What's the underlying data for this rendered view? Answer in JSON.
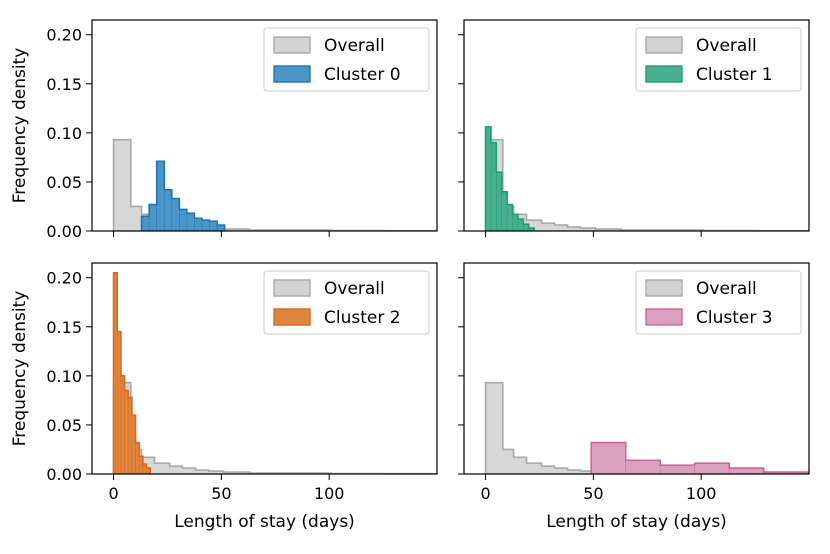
{
  "chart_data": {
    "type": "histogram",
    "xlabel": "Length of stay (days)",
    "ylabel": "Frequency density",
    "xlim": [
      -10,
      150
    ],
    "ylim": [
      0,
      0.215
    ],
    "xticks": [
      0,
      50,
      100
    ],
    "yticks": [
      0.0,
      0.05,
      0.1,
      0.15,
      0.2
    ],
    "ytick_labels": [
      "0.00",
      "0.05",
      "0.10",
      "0.15",
      "0.20"
    ],
    "legend_location": "upper right",
    "overall": {
      "name": "Overall",
      "color": "#a9a9a9",
      "fill": "#d3d3d3",
      "edges": [
        0,
        8,
        13,
        19,
        26,
        32,
        38,
        44,
        51,
        57,
        63,
        70,
        76,
        82,
        88,
        95,
        101,
        107,
        114,
        120,
        126,
        132,
        139,
        150
      ],
      "density": [
        0.093,
        0.025,
        0.017,
        0.011,
        0.008,
        0.006,
        0.004,
        0.003,
        0.002,
        0.002,
        0.001,
        0.001,
        0.001,
        0.001,
        0.001,
        0.001,
        0.0005,
        0.0005,
        0.0005,
        0.0005,
        0.0003,
        0.0003,
        0.0003
      ]
    },
    "panels": [
      {
        "name": "Cluster 0",
        "color": "#1f77b4",
        "fill": "#4a96c8",
        "show_ylabel": true,
        "show_xlabel": false,
        "show_xticklabels": false,
        "show_yticklabels": true,
        "edges": [
          13,
          16.5,
          20,
          23.5,
          27,
          30.5,
          34,
          37.5,
          41,
          44.5,
          48,
          51.5
        ],
        "density": [
          0.015,
          0.027,
          0.071,
          0.042,
          0.033,
          0.022,
          0.018,
          0.013,
          0.011,
          0.01,
          0.006
        ]
      },
      {
        "name": "Cluster 1",
        "color": "#1d9e77",
        "fill": "#48b08f",
        "show_ylabel": false,
        "show_xlabel": false,
        "show_xticklabels": false,
        "show_yticklabels": false,
        "edges": [
          0,
          2.5,
          5,
          7.5,
          10,
          12.5,
          15,
          17.5,
          20,
          22.5
        ],
        "density": [
          0.106,
          0.09,
          0.06,
          0.04,
          0.027,
          0.017,
          0.012,
          0.007,
          0.003
        ]
      },
      {
        "name": "Cluster 2",
        "color": "#d8691f",
        "fill": "#e08540",
        "show_ylabel": true,
        "show_xlabel": true,
        "show_xticklabels": true,
        "show_yticklabels": true,
        "edges": [
          0,
          1.7,
          3.4,
          5.1,
          6.8,
          8.5,
          10.2,
          11.9,
          13.6,
          15.3,
          17
        ],
        "density": [
          0.205,
          0.145,
          0.1,
          0.085,
          0.078,
          0.06,
          0.032,
          0.018,
          0.01,
          0.006
        ]
      },
      {
        "name": "Cluster 3",
        "color": "#c8689b",
        "fill": "#dba0bf",
        "show_ylabel": false,
        "show_xlabel": true,
        "show_xticklabels": true,
        "show_yticklabels": false,
        "edges": [
          49,
          65,
          81,
          97,
          113,
          129,
          150
        ],
        "density": [
          0.032,
          0.014,
          0.009,
          0.011,
          0.006,
          0.002
        ]
      }
    ]
  }
}
